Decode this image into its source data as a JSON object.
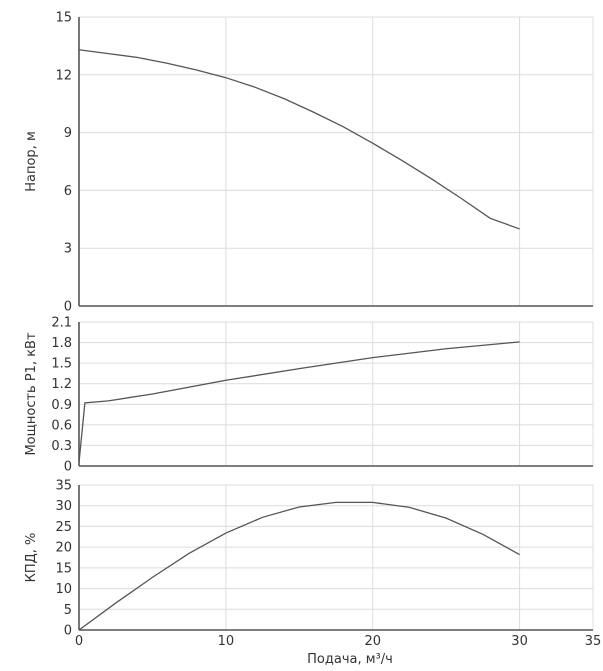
{
  "chart_data": [
    {
      "type": "line",
      "ylabel": "Напор, м",
      "xlim": [
        0,
        35
      ],
      "ylim": [
        0,
        15
      ],
      "yticks": [
        "0",
        "3",
        "6",
        "9",
        "12",
        "15"
      ],
      "grid": true,
      "series": [
        {
          "x": [
            0,
            2,
            4,
            6,
            8,
            10,
            12,
            14,
            16,
            18,
            20,
            22,
            24,
            26,
            28,
            30
          ],
          "y": [
            13.3,
            13.1,
            12.9,
            12.6,
            12.25,
            11.85,
            11.35,
            10.75,
            10.05,
            9.3,
            8.45,
            7.55,
            6.6,
            5.6,
            4.55,
            4.0
          ]
        }
      ]
    },
    {
      "type": "line",
      "ylabel": "Мощность P1, кВт",
      "xlim": [
        0,
        35
      ],
      "ylim": [
        0,
        2.1
      ],
      "yticks": [
        "0",
        "0.3",
        "0.6",
        "0.9",
        "1.2",
        "1.5",
        "1.8",
        "2.1"
      ],
      "grid": true,
      "series": [
        {
          "x": [
            0,
            0.4,
            2,
            5,
            10,
            15,
            20,
            25,
            30
          ],
          "y": [
            0.05,
            0.92,
            0.95,
            1.05,
            1.25,
            1.42,
            1.58,
            1.71,
            1.81
          ]
        }
      ]
    },
    {
      "type": "line",
      "ylabel": "КПД, %",
      "xlabel": "Подача, м³/ч",
      "xlim": [
        0,
        35
      ],
      "ylim": [
        0,
        35
      ],
      "xticks": [
        "0",
        "10",
        "20",
        "30",
        "35"
      ],
      "yticks": [
        "0",
        "5",
        "10",
        "15",
        "20",
        "25",
        "30",
        "35"
      ],
      "grid": true,
      "series": [
        {
          "x": [
            0,
            2.5,
            5,
            7.5,
            10,
            12.5,
            15,
            17.5,
            20,
            22.5,
            25,
            27.5,
            30
          ],
          "y": [
            0,
            6.5,
            12.7,
            18.5,
            23.4,
            27.2,
            29.7,
            30.8,
            30.8,
            29.6,
            27.0,
            23.1,
            18.2
          ]
        }
      ]
    }
  ]
}
